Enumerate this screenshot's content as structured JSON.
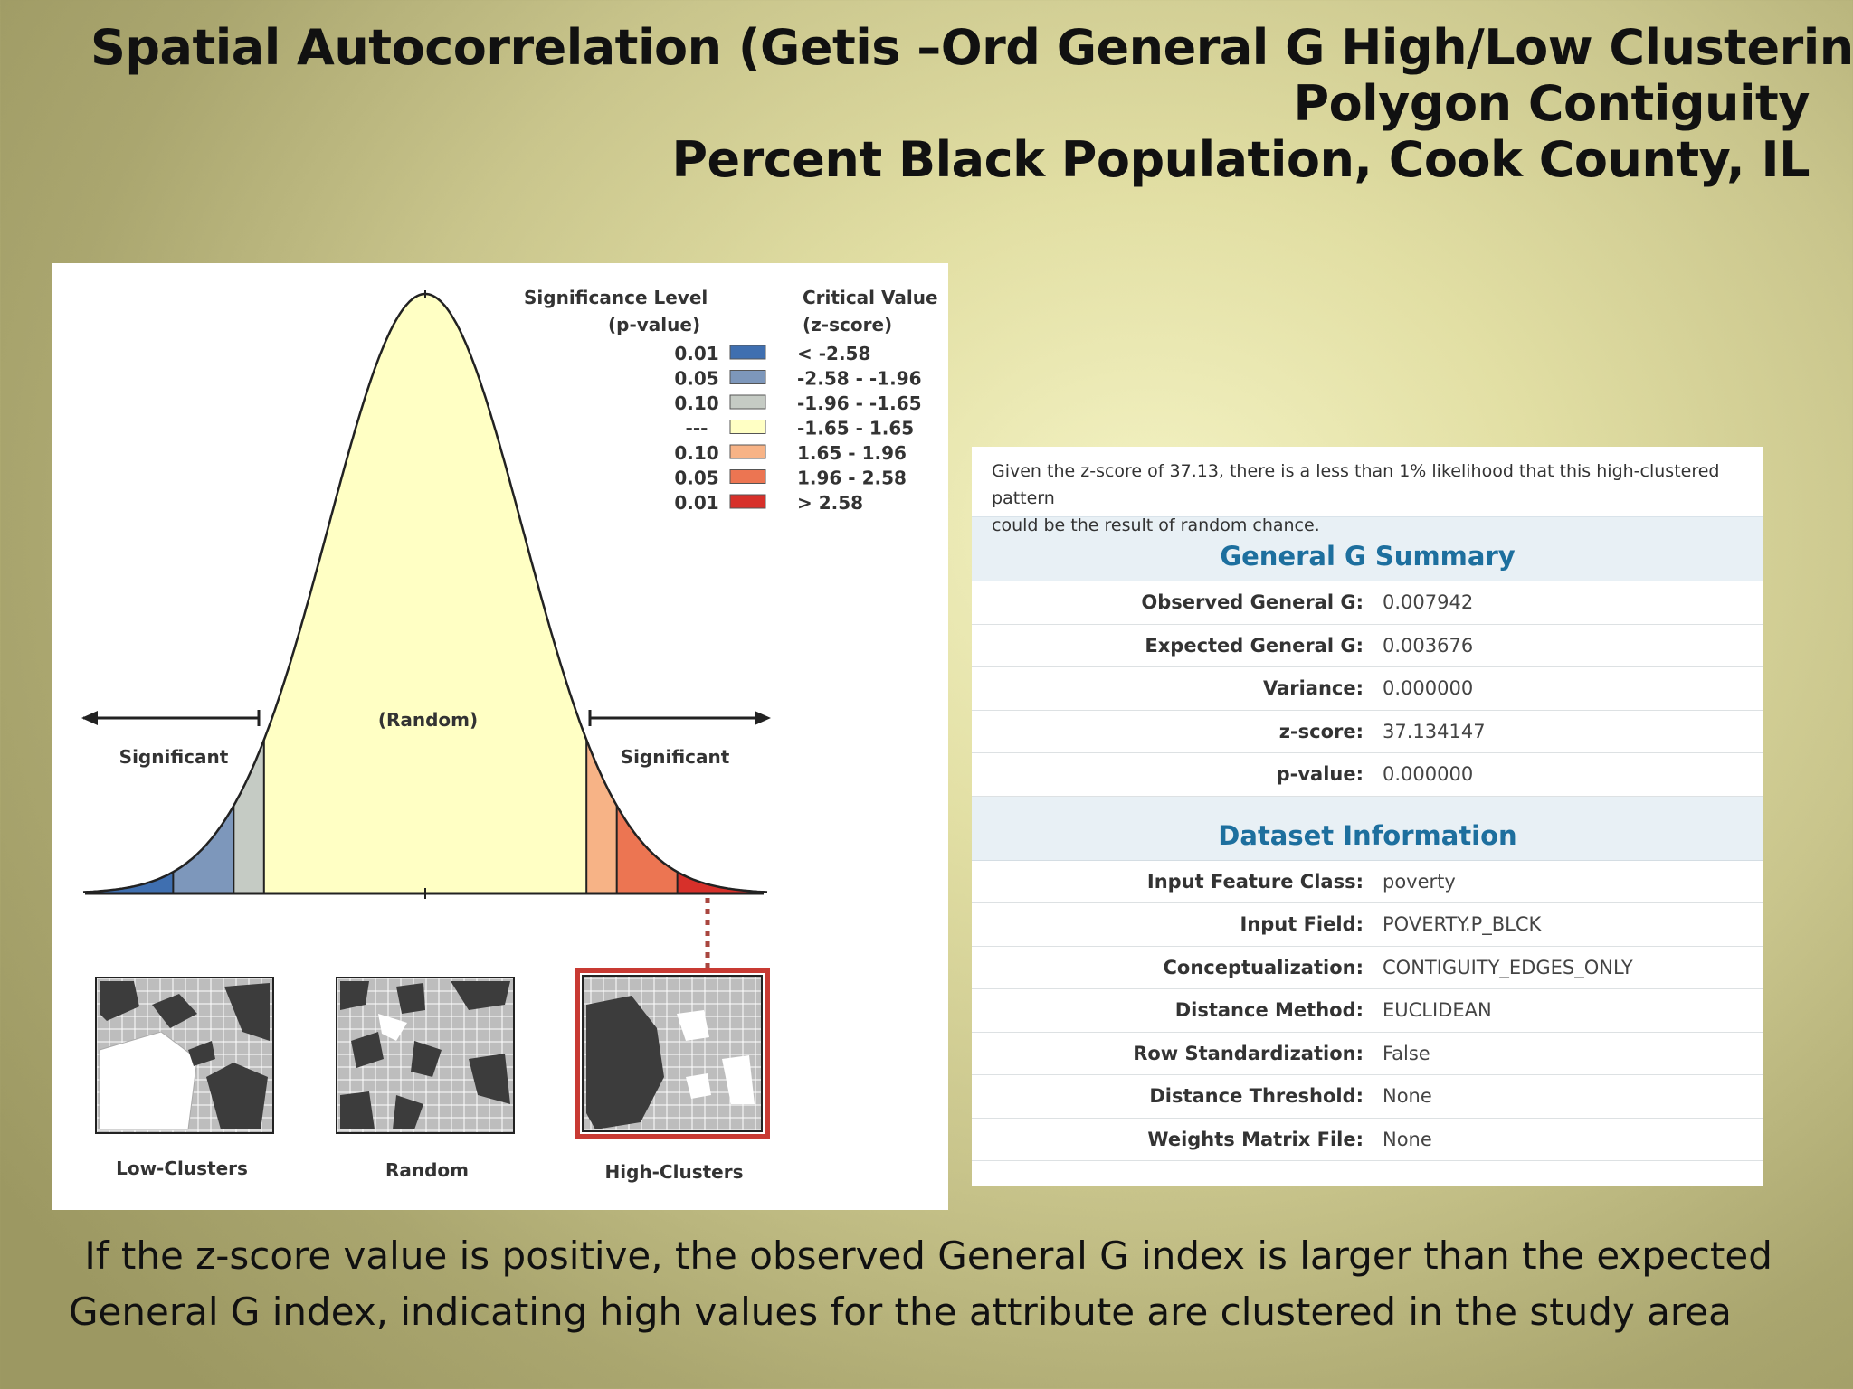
{
  "title": {
    "line1": "Spatial Autocorrelation (Getis –Ord General G High/Low Clustering)",
    "line2": "Polygon Contiguity",
    "line3": "Percent Black Population, Cook County, IL"
  },
  "diagram": {
    "legend_header_sig_1": "Significance Level",
    "legend_header_sig_2": "(p-value)",
    "legend_header_crit_1": "Critical Value",
    "legend_header_crit_2": "(z-score)",
    "legend": [
      {
        "p": "0.01",
        "z": "< -2.58",
        "color": "#3f6fb0"
      },
      {
        "p": "0.05",
        "z": "-2.58 - -1.96",
        "color": "#7d97bb"
      },
      {
        "p": "0.10",
        "z": "-1.96 - -1.65",
        "color": "#c5cbc4"
      },
      {
        "p": "---",
        "z": "-1.65 - 1.65",
        "color": "#ffffc4"
      },
      {
        "p": "0.10",
        "z": "1.65 - 1.96",
        "color": "#f7b386"
      },
      {
        "p": "0.05",
        "z": "1.96 - 2.58",
        "color": "#ec7552"
      },
      {
        "p": "0.01",
        "z": "> 2.58",
        "color": "#d7302a"
      }
    ],
    "label_random": "(Random)",
    "label_significant_left": "Significant",
    "label_significant_right": "Significant",
    "thumb_low": "Low-Clusters",
    "thumb_random": "Random",
    "thumb_high": "High-Clusters"
  },
  "report": {
    "intro_line1": "Given the z-score of 37.13, there is a less than 1% likelihood that this high-clustered pattern",
    "intro_line2": "could be the result of random chance.",
    "summary_title": "General G Summary",
    "summary": [
      {
        "key": "Observed General G:",
        "value": "0.007942"
      },
      {
        "key": "Expected General G:",
        "value": "0.003676"
      },
      {
        "key": "Variance:",
        "value": "0.000000"
      },
      {
        "key": "z-score:",
        "value": "37.134147"
      },
      {
        "key": "p-value:",
        "value": "0.000000"
      }
    ],
    "dataset_title": "Dataset Information",
    "dataset": [
      {
        "key": "Input Feature Class:",
        "value": "poverty"
      },
      {
        "key": "Input Field:",
        "value": "POVERTY.P_BLCK"
      },
      {
        "key": "Conceptualization:",
        "value": "CONTIGUITY_EDGES_ONLY"
      },
      {
        "key": "Distance Method:",
        "value": "EUCLIDEAN"
      },
      {
        "key": "Row Standardization:",
        "value": "False"
      },
      {
        "key": "Distance Threshold:",
        "value": "None"
      },
      {
        "key": "Weights Matrix File:",
        "value": "None"
      }
    ]
  },
  "caption": {
    "line1": " If the z-score value is positive, the observed General G index is larger than the expected",
    "line2": "General G index, indicating high values for the attribute are clustered in the study area"
  }
}
